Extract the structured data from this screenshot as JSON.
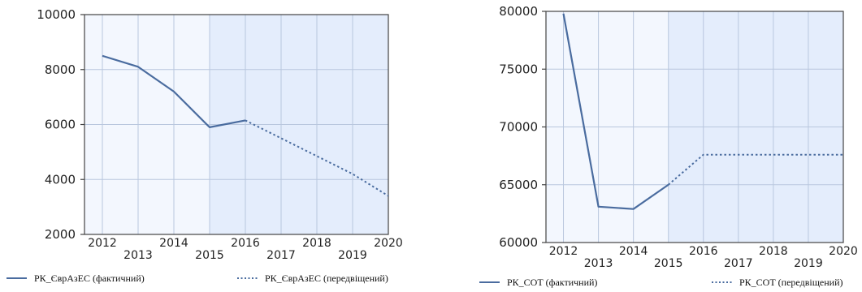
{
  "colors": {
    "line": "#4a6c9f",
    "band_a": "#f3f7fe",
    "band_b": "#e4edfc",
    "gridline": "#b9c7de",
    "axis": "#444444"
  },
  "chart_data": [
    {
      "type": "line",
      "title": "",
      "xlabel": "",
      "ylabel": "",
      "x": [
        "2012",
        "2013",
        "2014",
        "2015",
        "2016",
        "2017",
        "2018",
        "2019",
        "2020"
      ],
      "x_staggered": true,
      "ylim": [
        2000,
        10000
      ],
      "yticks": [
        "10000",
        "8000",
        "6000",
        "4000",
        "2000"
      ],
      "forecast_shading_from": "2015",
      "grid": true,
      "legend_position": "bottom",
      "series": [
        {
          "name": "РК_ЄврАзЕС (фактичний)",
          "style": "solid",
          "points": [
            {
              "x": "2012",
              "y": 8500
            },
            {
              "x": "2013",
              "y": 8100
            },
            {
              "x": "2014",
              "y": 7200
            },
            {
              "x": "2015",
              "y": 5900
            },
            {
              "x": "2016",
              "y": 6150
            }
          ]
        },
        {
          "name": "РК_ЄврАзЕС (передвіщений)",
          "style": "dotted",
          "points": [
            {
              "x": "2016",
              "y": 6150
            },
            {
              "x": "2017",
              "y": 5500
            },
            {
              "x": "2018",
              "y": 4850
            },
            {
              "x": "2019",
              "y": 4200
            },
            {
              "x": "2020",
              "y": 3400
            }
          ]
        }
      ]
    },
    {
      "type": "line",
      "title": "",
      "xlabel": "",
      "ylabel": "",
      "x": [
        "2012",
        "2013",
        "2014",
        "2015",
        "2016",
        "2017",
        "2018",
        "2019",
        "2020"
      ],
      "x_staggered": true,
      "ylim": [
        60000,
        80000
      ],
      "yticks": [
        "80000",
        "75000",
        "70000",
        "65000",
        "60000"
      ],
      "forecast_shading_from": "2015",
      "grid": true,
      "legend_position": "bottom",
      "series": [
        {
          "name": "РК_СОТ (фактичний)",
          "style": "solid",
          "points": [
            {
              "x": "2012",
              "y": 79800
            },
            {
              "x": "2013",
              "y": 63100
            },
            {
              "x": "2014",
              "y": 62900
            },
            {
              "x": "2015",
              "y": 65000
            }
          ]
        },
        {
          "name": "РК_СОТ (передвіщений)",
          "style": "dotted",
          "points": [
            {
              "x": "2015",
              "y": 65000
            },
            {
              "x": "2016",
              "y": 67600
            },
            {
              "x": "2017",
              "y": 67600
            },
            {
              "x": "2018",
              "y": 67600
            },
            {
              "x": "2019",
              "y": 67600
            },
            {
              "x": "2020",
              "y": 67600
            }
          ]
        }
      ]
    }
  ]
}
